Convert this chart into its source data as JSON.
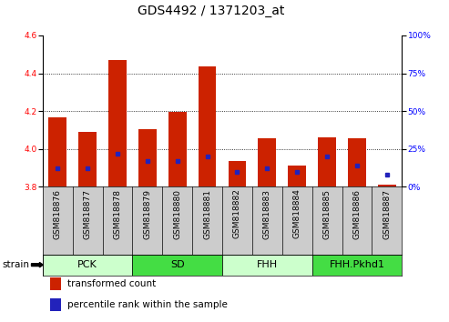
{
  "title": "GDS4492 / 1371203_at",
  "samples": [
    "GSM818876",
    "GSM818877",
    "GSM818878",
    "GSM818879",
    "GSM818880",
    "GSM818881",
    "GSM818882",
    "GSM818883",
    "GSM818884",
    "GSM818885",
    "GSM818886",
    "GSM818887"
  ],
  "transformed_count": [
    4.165,
    4.09,
    4.47,
    4.105,
    4.195,
    4.435,
    3.935,
    4.055,
    3.91,
    4.06,
    4.055,
    3.81
  ],
  "percentile_rank": [
    12,
    12,
    22,
    17,
    17,
    20,
    10,
    12,
    10,
    20,
    14,
    8
  ],
  "y_min": 3.8,
  "y_max": 4.6,
  "y_ticks": [
    3.8,
    4.0,
    4.2,
    4.4,
    4.6
  ],
  "right_y_ticks": [
    0,
    25,
    50,
    75,
    100
  ],
  "bar_color": "#cc2200",
  "percentile_color": "#2222bb",
  "bar_width": 0.6,
  "groups": [
    {
      "label": "PCK",
      "start": 0,
      "end": 3,
      "color": "#ccffcc"
    },
    {
      "label": "SD",
      "start": 3,
      "end": 6,
      "color": "#44dd44"
    },
    {
      "label": "FHH",
      "start": 6,
      "end": 9,
      "color": "#ccffcc"
    },
    {
      "label": "FHH.Pkhd1",
      "start": 9,
      "end": 12,
      "color": "#44dd44"
    }
  ],
  "strain_label": "strain",
  "legend_items": [
    {
      "label": "transformed count",
      "color": "#cc2200"
    },
    {
      "label": "percentile rank within the sample",
      "color": "#2222bb"
    }
  ],
  "title_fontsize": 10,
  "tick_fontsize": 6.5,
  "label_fontsize": 7.5,
  "group_fontsize": 8,
  "legend_fontsize": 7.5,
  "grid_lines": [
    4.0,
    4.2,
    4.4
  ],
  "xtick_bg_color": "#cccccc",
  "plot_bg_color": "#ffffff"
}
